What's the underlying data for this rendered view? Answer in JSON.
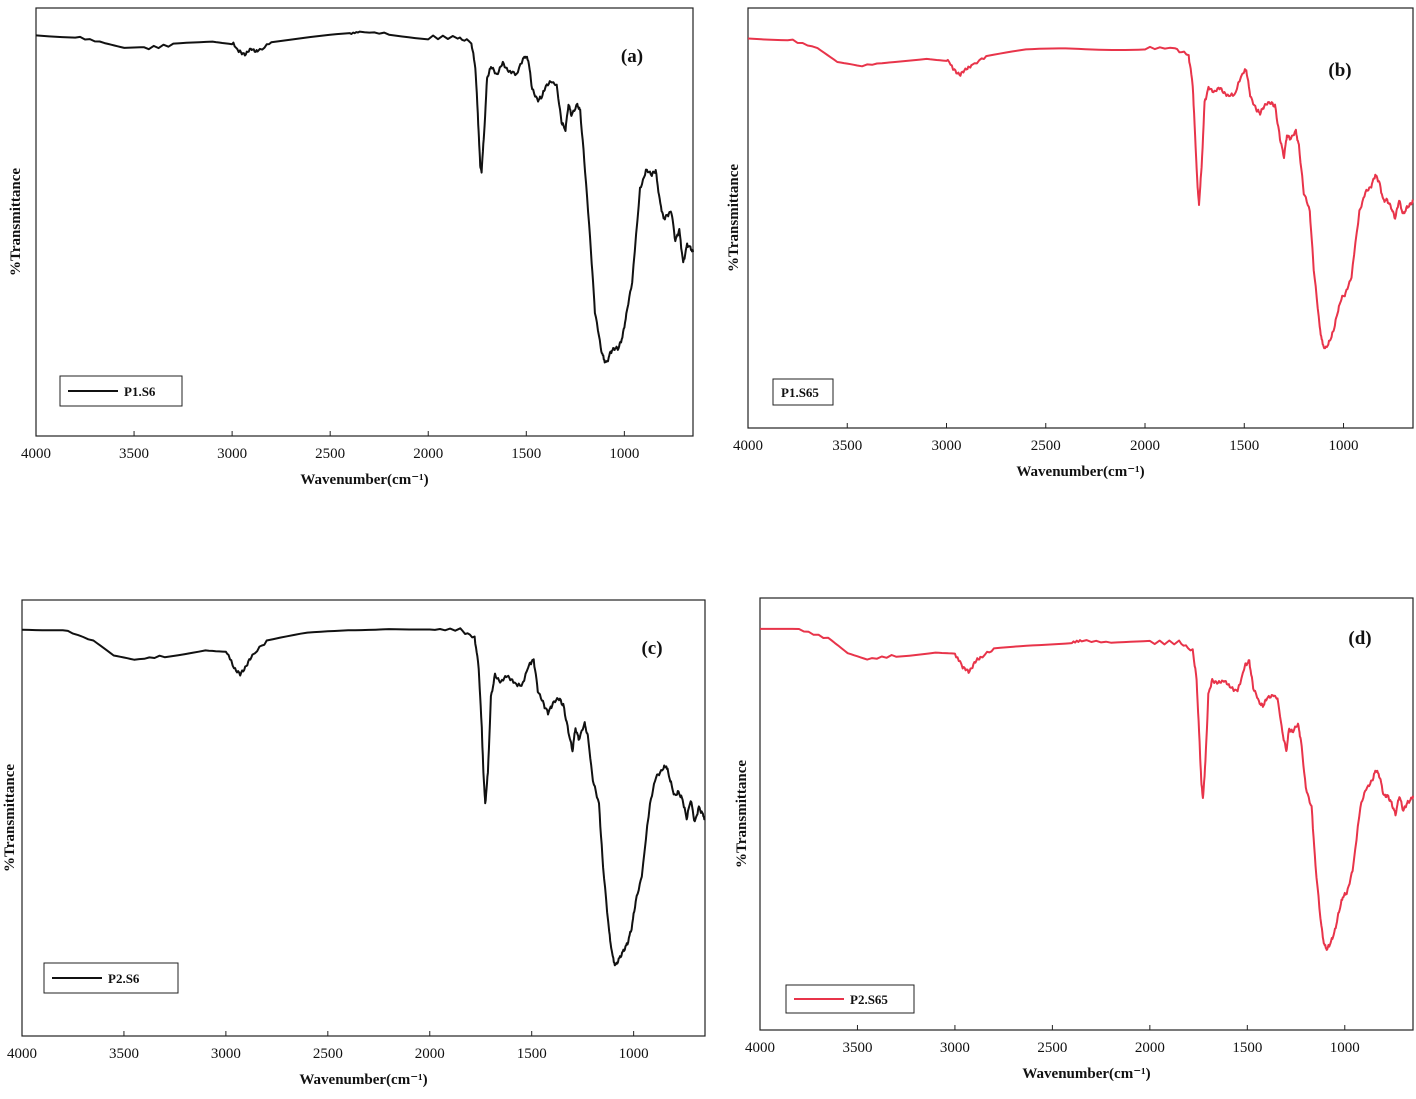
{
  "chart_data": [
    {
      "panel": "(a)",
      "type": "line",
      "xlabel": "Wavenumber(cm⁻¹)",
      "ylabel": "%Transmittance",
      "xlim": [
        4000,
        650
      ],
      "x_reversed": true,
      "xticks": [
        4000,
        3500,
        3000,
        2500,
        2000,
        1500,
        1000
      ],
      "ylim": [
        0,
        100
      ],
      "y_tick_labels": false,
      "grid": false,
      "legend_position": "bottom-left",
      "series": [
        {
          "name": "P1.S6",
          "color": "#111111",
          "x": [
            4000,
            3800,
            3650,
            3550,
            3450,
            3300,
            3100,
            3000,
            2960,
            2930,
            2900,
            2870,
            2800,
            2600,
            2400,
            2350,
            2200,
            2000,
            1850,
            1780,
            1760,
            1745,
            1735,
            1728,
            1715,
            1700,
            1680,
            1650,
            1620,
            1590,
            1550,
            1510,
            1490,
            1470,
            1440,
            1420,
            1400,
            1370,
            1345,
            1320,
            1300,
            1285,
            1270,
            1240,
            1225,
            1200,
            1170,
            1150,
            1120,
            1105,
            1090,
            1070,
            1050,
            1030,
            1010,
            990,
            960,
            920,
            890,
            860,
            840,
            820,
            800,
            780,
            760,
            740,
            720,
            700,
            680,
            660,
            650
          ],
          "y": [
            98.5,
            98.2,
            96.5,
            95,
            95,
            96,
            97,
            96.5,
            94,
            93.5,
            95,
            94,
            97,
            98,
            99,
            99.5,
            99,
            98,
            98,
            96.5,
            90,
            75,
            63,
            62,
            72,
            87,
            90,
            88,
            91,
            89,
            88,
            93,
            92,
            84,
            81,
            82,
            85,
            86,
            85,
            75,
            73,
            80,
            77,
            80,
            78,
            62,
            40,
            24,
            14,
            11,
            10,
            13,
            14,
            14,
            17,
            23,
            32,
            57,
            62,
            61,
            62,
            54,
            49,
            50,
            51,
            43,
            46,
            37,
            42,
            41,
            40
          ]
        }
      ]
    },
    {
      "panel": "(b)",
      "type": "line",
      "xlabel": "Wavenumber(cm⁻¹)",
      "ylabel": "%Transmittance",
      "xlim": [
        4000,
        650
      ],
      "x_reversed": true,
      "xticks": [
        4000,
        3500,
        3000,
        2500,
        2000,
        1500,
        1000
      ],
      "ylim": [
        0,
        100
      ],
      "y_tick_labels": false,
      "grid": false,
      "legend_position": "bottom-left",
      "series": [
        {
          "name": "P1.S65",
          "color": "#e8344a",
          "x": [
            4000,
            3800,
            3650,
            3550,
            3450,
            3300,
            3100,
            3000,
            2960,
            2930,
            2900,
            2870,
            2800,
            2600,
            2400,
            2200,
            2000,
            1850,
            1780,
            1760,
            1745,
            1735,
            1728,
            1715,
            1700,
            1680,
            1650,
            1620,
            1590,
            1550,
            1510,
            1490,
            1470,
            1440,
            1420,
            1400,
            1370,
            1345,
            1320,
            1300,
            1285,
            1270,
            1240,
            1225,
            1200,
            1170,
            1150,
            1120,
            1105,
            1090,
            1070,
            1050,
            1030,
            1010,
            990,
            960,
            920,
            890,
            860,
            840,
            820,
            800,
            780,
            760,
            740,
            720,
            700,
            680,
            660,
            650
          ],
          "y": [
            98,
            97.5,
            95,
            91,
            90,
            91,
            92.5,
            92,
            89,
            87.5,
            89.5,
            90,
            93,
            94.5,
            95,
            95,
            95,
            95,
            93,
            85,
            68,
            56,
            52,
            62,
            80,
            84,
            83,
            84,
            82,
            82,
            88,
            89,
            82,
            78,
            77,
            79,
            80,
            79,
            70,
            65,
            71,
            70,
            72,
            68,
            55,
            50,
            34,
            18,
            13,
            12,
            14,
            17,
            22,
            26,
            27,
            32,
            50,
            55,
            57,
            60,
            58,
            53,
            53,
            51,
            48,
            53,
            49,
            51,
            52,
            53
          ]
        }
      ]
    },
    {
      "panel": "(c)",
      "type": "line",
      "xlabel": "Wavenumber(cm⁻¹)",
      "ylabel": "%Transmittance",
      "xlim": [
        4000,
        650
      ],
      "x_reversed": true,
      "xticks": [
        4000,
        3500,
        3000,
        2500,
        2000,
        1500,
        1000
      ],
      "ylim": [
        0,
        100
      ],
      "y_tick_labels": false,
      "grid": false,
      "legend_position": "bottom-left",
      "series": [
        {
          "name": "P2.S6",
          "color": "#111111",
          "x": [
            4000,
            3800,
            3650,
            3550,
            3450,
            3300,
            3100,
            3000,
            2960,
            2930,
            2900,
            2870,
            2800,
            2600,
            2400,
            2200,
            2000,
            1850,
            1780,
            1760,
            1745,
            1735,
            1728,
            1715,
            1700,
            1680,
            1650,
            1620,
            1590,
            1550,
            1510,
            1490,
            1470,
            1440,
            1420,
            1400,
            1370,
            1345,
            1320,
            1300,
            1285,
            1270,
            1240,
            1225,
            1200,
            1170,
            1150,
            1120,
            1105,
            1090,
            1070,
            1050,
            1030,
            1010,
            990,
            960,
            920,
            890,
            860,
            840,
            820,
            800,
            780,
            760,
            740,
            720,
            700,
            680,
            660,
            650
          ],
          "y": [
            98.5,
            98,
            95,
            91,
            90,
            91,
            93,
            92.5,
            88,
            86,
            88.5,
            91,
            95,
            97,
            98,
            98.5,
            98,
            98,
            96,
            88,
            72,
            58,
            52,
            60,
            80,
            86,
            84,
            86,
            84,
            83,
            89,
            90,
            82,
            78,
            76,
            78,
            80,
            78,
            71,
            66,
            72,
            69,
            73,
            70,
            58,
            52,
            35,
            18,
            12,
            9,
            11,
            13,
            15,
            19,
            26,
            33,
            52,
            59,
            61,
            62,
            58,
            54,
            55,
            53,
            48,
            53,
            47,
            51,
            49,
            48
          ]
        }
      ]
    },
    {
      "panel": "(d)",
      "type": "line",
      "xlabel": "Wavenumber(cm⁻¹)",
      "ylabel": "%Transmittance",
      "xlim": [
        4000,
        650
      ],
      "x_reversed": true,
      "xticks": [
        4000,
        3500,
        3000,
        2500,
        2000,
        1500,
        1000
      ],
      "ylim": [
        0,
        100
      ],
      "y_tick_labels": false,
      "grid": false,
      "legend_position": "bottom-left",
      "series": [
        {
          "name": "P2.S65",
          "color": "#e8344a",
          "x": [
            4000,
            3800,
            3650,
            3550,
            3450,
            3300,
            3100,
            3000,
            2960,
            2930,
            2900,
            2870,
            2800,
            2600,
            2400,
            2350,
            2200,
            2000,
            1850,
            1780,
            1760,
            1745,
            1735,
            1728,
            1715,
            1700,
            1680,
            1650,
            1620,
            1590,
            1550,
            1510,
            1490,
            1470,
            1440,
            1420,
            1400,
            1370,
            1345,
            1320,
            1300,
            1285,
            1270,
            1240,
            1225,
            1200,
            1170,
            1150,
            1120,
            1105,
            1090,
            1070,
            1050,
            1030,
            1010,
            990,
            960,
            920,
            890,
            860,
            840,
            820,
            800,
            780,
            760,
            740,
            720,
            700,
            680,
            660,
            650
          ],
          "y": [
            98,
            97.5,
            95,
            91,
            89.5,
            90.5,
            91.5,
            91,
            87.5,
            86,
            88.5,
            90,
            92,
            93,
            94,
            94.5,
            94,
            94,
            94,
            92,
            84,
            67,
            56,
            52,
            62,
            80,
            84,
            83,
            84,
            82,
            81,
            88,
            89,
            82,
            78,
            77,
            79,
            80,
            79,
            70,
            65,
            71,
            70,
            72,
            68,
            55,
            50,
            34,
            18,
            13,
            12,
            14,
            17,
            22,
            26,
            27,
            33,
            50,
            55,
            57,
            60,
            58,
            53,
            53,
            51,
            48,
            53,
            49,
            51,
            52,
            53
          ]
        }
      ]
    }
  ]
}
